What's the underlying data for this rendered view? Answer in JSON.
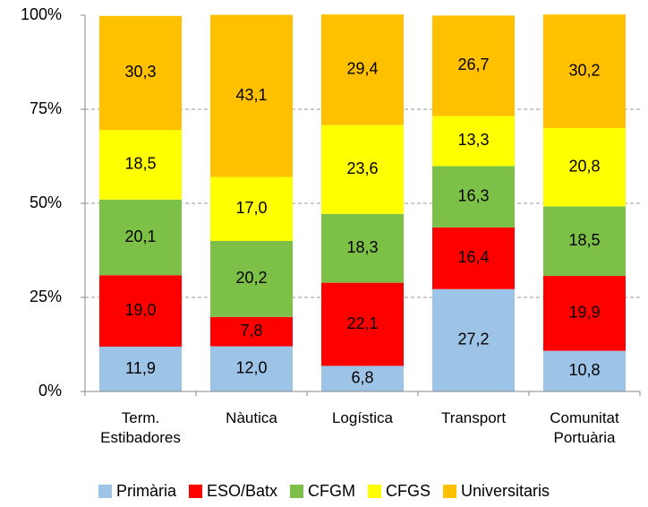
{
  "chart_data": {
    "type": "stacked_bar",
    "categories": [
      "Term. Estibadores",
      "Nàutica",
      "Logística",
      "Transport",
      "Comunitat Portuària"
    ],
    "series": [
      {
        "name": "Primària",
        "color": "#9dc3e6",
        "values": [
          11.9,
          12.0,
          6.8,
          27.2,
          10.8
        ],
        "value_labels": [
          "11,9",
          "12,0",
          "6,8",
          "27,2",
          "10,8"
        ]
      },
      {
        "name": "ESO/Batx",
        "color": "#ff0000",
        "values": [
          19.0,
          7.8,
          22.1,
          16.4,
          19.9
        ],
        "value_labels": [
          "19,0",
          "7,8",
          "22,1",
          "16,4",
          "19,9"
        ]
      },
      {
        "name": "CFGM",
        "color": "#7dc048",
        "values": [
          20.1,
          20.2,
          18.3,
          16.3,
          18.5
        ],
        "value_labels": [
          "20,1",
          "20,2",
          "18,3",
          "16,3",
          "18,5"
        ]
      },
      {
        "name": "CFGS",
        "color": "#ffff00",
        "values": [
          18.5,
          17.0,
          23.6,
          13.3,
          20.8
        ],
        "value_labels": [
          "18,5",
          "17,0",
          "23,6",
          "13,3",
          "20,8"
        ]
      },
      {
        "name": "Universitaris",
        "color": "#ffc000",
        "values": [
          30.3,
          43.1,
          29.4,
          26.7,
          30.2
        ],
        "value_labels": [
          "30,3",
          "43,1",
          "29,4",
          "26,7",
          "30,2"
        ]
      }
    ],
    "ylim": [
      0,
      100
    ],
    "yticks": [
      {
        "value": 0,
        "label": "0%"
      },
      {
        "value": 25,
        "label": "25%"
      },
      {
        "value": 50,
        "label": "50%"
      },
      {
        "value": 75,
        "label": "75%"
      },
      {
        "value": 100,
        "label": "100%"
      }
    ],
    "grid": true,
    "legend": "bottom"
  }
}
